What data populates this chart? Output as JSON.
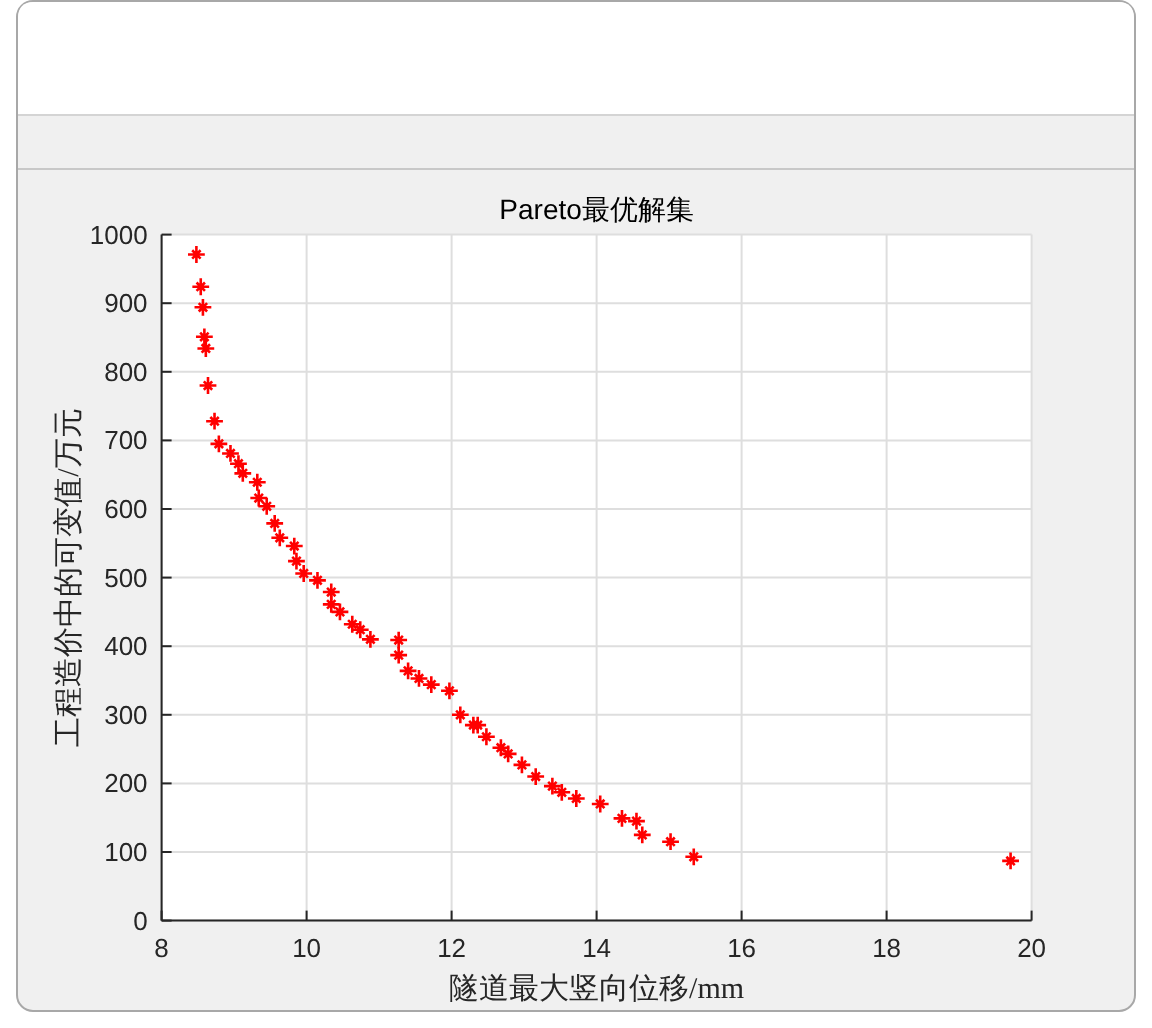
{
  "chart_data": {
    "type": "scatter",
    "title": "Pareto最优解集",
    "xlabel": "隧道最大竖向位移/mm",
    "ylabel": "工程造价中的可变值/万元",
    "x": [
      8.48,
      8.54,
      8.57,
      8.59,
      8.61,
      8.64,
      8.73,
      8.79,
      8.95,
      9.06,
      9.12,
      9.32,
      9.34,
      9.45,
      9.56,
      9.63,
      9.83,
      9.86,
      9.96,
      10.15,
      10.34,
      10.34,
      10.46,
      10.63,
      10.74,
      10.88,
      11.27,
      11.27,
      11.4,
      11.55,
      11.72,
      11.97,
      12.12,
      12.3,
      12.36,
      12.48,
      12.68,
      12.78,
      12.97,
      13.16,
      13.39,
      13.52,
      13.72,
      14.05,
      14.35,
      14.55,
      14.63,
      15.02,
      15.34,
      19.71
    ],
    "values": [
      971,
      924,
      894,
      851,
      834,
      780,
      728,
      695,
      681,
      666,
      652,
      639,
      616,
      604,
      579,
      558,
      546,
      524,
      506,
      496,
      479,
      461,
      450,
      432,
      424,
      410,
      409,
      387,
      364,
      353,
      344,
      335,
      300,
      285,
      285,
      268,
      252,
      243,
      227,
      210,
      196,
      187,
      178,
      170,
      149,
      145,
      125,
      115,
      93,
      87
    ],
    "color": "#ff0000",
    "marker": "cross",
    "xlim": [
      8,
      20
    ],
    "ylim": [
      0,
      1000
    ],
    "xticks": [
      8,
      10,
      12,
      14,
      16,
      18,
      20
    ],
    "yticks": [
      0,
      100,
      200,
      300,
      400,
      500,
      600,
      700,
      800,
      900,
      1000
    ],
    "grid": true
  }
}
